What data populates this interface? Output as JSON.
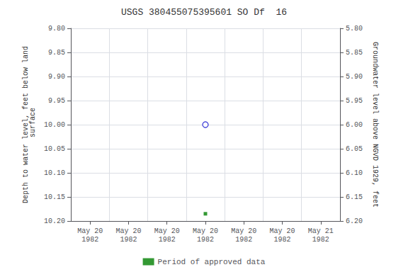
{
  "chart_data": {
    "type": "scatter",
    "title": "USGS 380455075395601 SO Df  16",
    "y_label": "Depth to water level, feet below land\n surface",
    "y2_label": "Groundwater level above NGVD 1929, feet",
    "categories": [
      "May 20\n1982",
      "May 20\n1982",
      "May 20\n1982",
      "May 20\n1982",
      "May 20\n1982",
      "May 20\n1982",
      "May 21\n1982"
    ],
    "series": [
      {
        "values": [
          null,
          null,
          null,
          10.0,
          null,
          null,
          null
        ],
        "color": "#0000cc",
        "marker": "open_circle"
      },
      {
        "name": "Period of approved data",
        "values": [
          null,
          null,
          null,
          10.185,
          null,
          null,
          null
        ],
        "color": "#008000",
        "marker": "square"
      }
    ],
    "ylim": [
      10.2,
      9.8
    ],
    "yticks": [
      {
        "value": 9.8,
        "label": "9.80"
      },
      {
        "value": 9.85,
        "label": "9.85"
      },
      {
        "value": 9.9,
        "label": "9.90"
      },
      {
        "value": 9.95,
        "label": "9.95"
      },
      {
        "value": 10.0,
        "label": "10.00"
      },
      {
        "value": 10.05,
        "label": "10.05"
      },
      {
        "value": 10.1,
        "label": "10.10"
      },
      {
        "value": 10.15,
        "label": "10.15"
      },
      {
        "value": 10.2,
        "label": "10.20"
      }
    ],
    "y2lim": [
      6.2,
      5.8
    ],
    "y2ticks": [
      {
        "value": 6.2,
        "label": "6.20"
      },
      {
        "value": 6.15,
        "label": "6.15"
      },
      {
        "value": 6.1,
        "label": "6.10"
      },
      {
        "value": 6.05,
        "label": "6.05"
      },
      {
        "value": 6.0,
        "label": "6.00"
      },
      {
        "value": 5.95,
        "label": "5.95"
      },
      {
        "value": 5.9,
        "label": "5.90"
      },
      {
        "value": 5.85,
        "label": "5.85"
      },
      {
        "value": 5.8,
        "label": "5.80"
      }
    ],
    "grid": true,
    "legend": "bottom"
  }
}
